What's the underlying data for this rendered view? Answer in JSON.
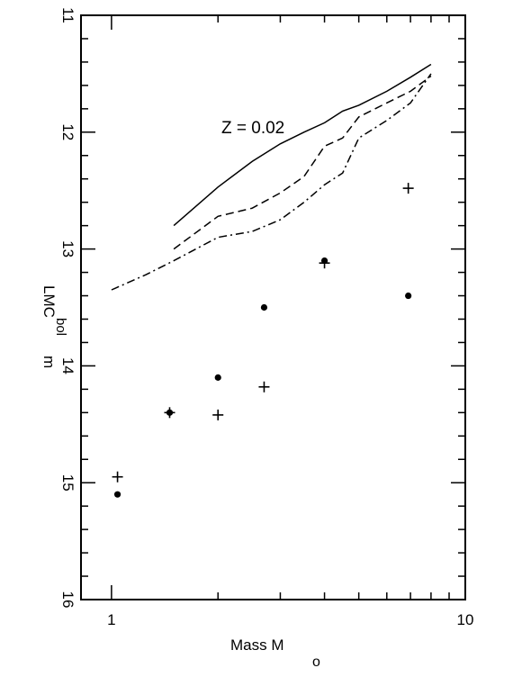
{
  "chart_data": {
    "type": "scatter",
    "xlabel": {
      "main": "Mass M",
      "sub": "o"
    },
    "ylabel": {
      "main": "m",
      "sub": "bol",
      "suffix": "LMC"
    },
    "x_scale": "log",
    "xlim": [
      0.82,
      10
    ],
    "ylim": [
      11,
      16
    ],
    "y_inverted": true,
    "y_tick_labels": [
      "11",
      "12",
      "13",
      "14",
      "15",
      "16"
    ],
    "x_tick_labels": [
      "1",
      "10"
    ],
    "annotation": "Z = 0.02",
    "series": [
      {
        "marker": "dot",
        "points": [
          {
            "x": 1.04,
            "y": 15.1
          },
          {
            "x": 1.46,
            "y": 14.4
          },
          {
            "x": 2.0,
            "y": 14.1
          },
          {
            "x": 2.7,
            "y": 13.5
          },
          {
            "x": 4.0,
            "y": 13.1
          },
          {
            "x": 6.9,
            "y": 13.4
          }
        ]
      },
      {
        "marker": "plus",
        "points": [
          {
            "x": 1.04,
            "y": 14.95
          },
          {
            "x": 1.46,
            "y": 14.4
          },
          {
            "x": 2.0,
            "y": 14.42
          },
          {
            "x": 2.7,
            "y": 14.18
          },
          {
            "x": 4.0,
            "y": 13.12
          },
          {
            "x": 6.9,
            "y": 12.48
          }
        ]
      }
    ],
    "curves": [
      {
        "style": "solid",
        "points": [
          [
            1.5,
            12.8
          ],
          [
            2.0,
            12.47
          ],
          [
            2.5,
            12.25
          ],
          [
            3.0,
            12.1
          ],
          [
            3.5,
            12.0
          ],
          [
            4.0,
            11.92
          ],
          [
            4.5,
            11.82
          ],
          [
            5.0,
            11.77
          ],
          [
            6.0,
            11.65
          ],
          [
            7.0,
            11.53
          ],
          [
            8.0,
            11.42
          ]
        ]
      },
      {
        "style": "dashed",
        "points": [
          [
            1.5,
            13.0
          ],
          [
            2.0,
            12.72
          ],
          [
            2.5,
            12.65
          ],
          [
            3.0,
            12.52
          ],
          [
            3.5,
            12.38
          ],
          [
            4.0,
            12.12
          ],
          [
            4.5,
            12.05
          ],
          [
            5.0,
            11.87
          ],
          [
            6.0,
            11.75
          ],
          [
            7.0,
            11.65
          ],
          [
            8.0,
            11.52
          ]
        ]
      },
      {
        "style": "dashdot",
        "points": [
          [
            1.0,
            13.35
          ],
          [
            1.25,
            13.22
          ],
          [
            1.5,
            13.1
          ],
          [
            2.0,
            12.9
          ],
          [
            2.5,
            12.85
          ],
          [
            3.0,
            12.75
          ],
          [
            3.5,
            12.6
          ],
          [
            4.0,
            12.45
          ],
          [
            4.5,
            12.35
          ],
          [
            5.0,
            12.05
          ],
          [
            6.0,
            11.9
          ],
          [
            7.0,
            11.75
          ],
          [
            8.0,
            11.5
          ]
        ]
      }
    ]
  }
}
